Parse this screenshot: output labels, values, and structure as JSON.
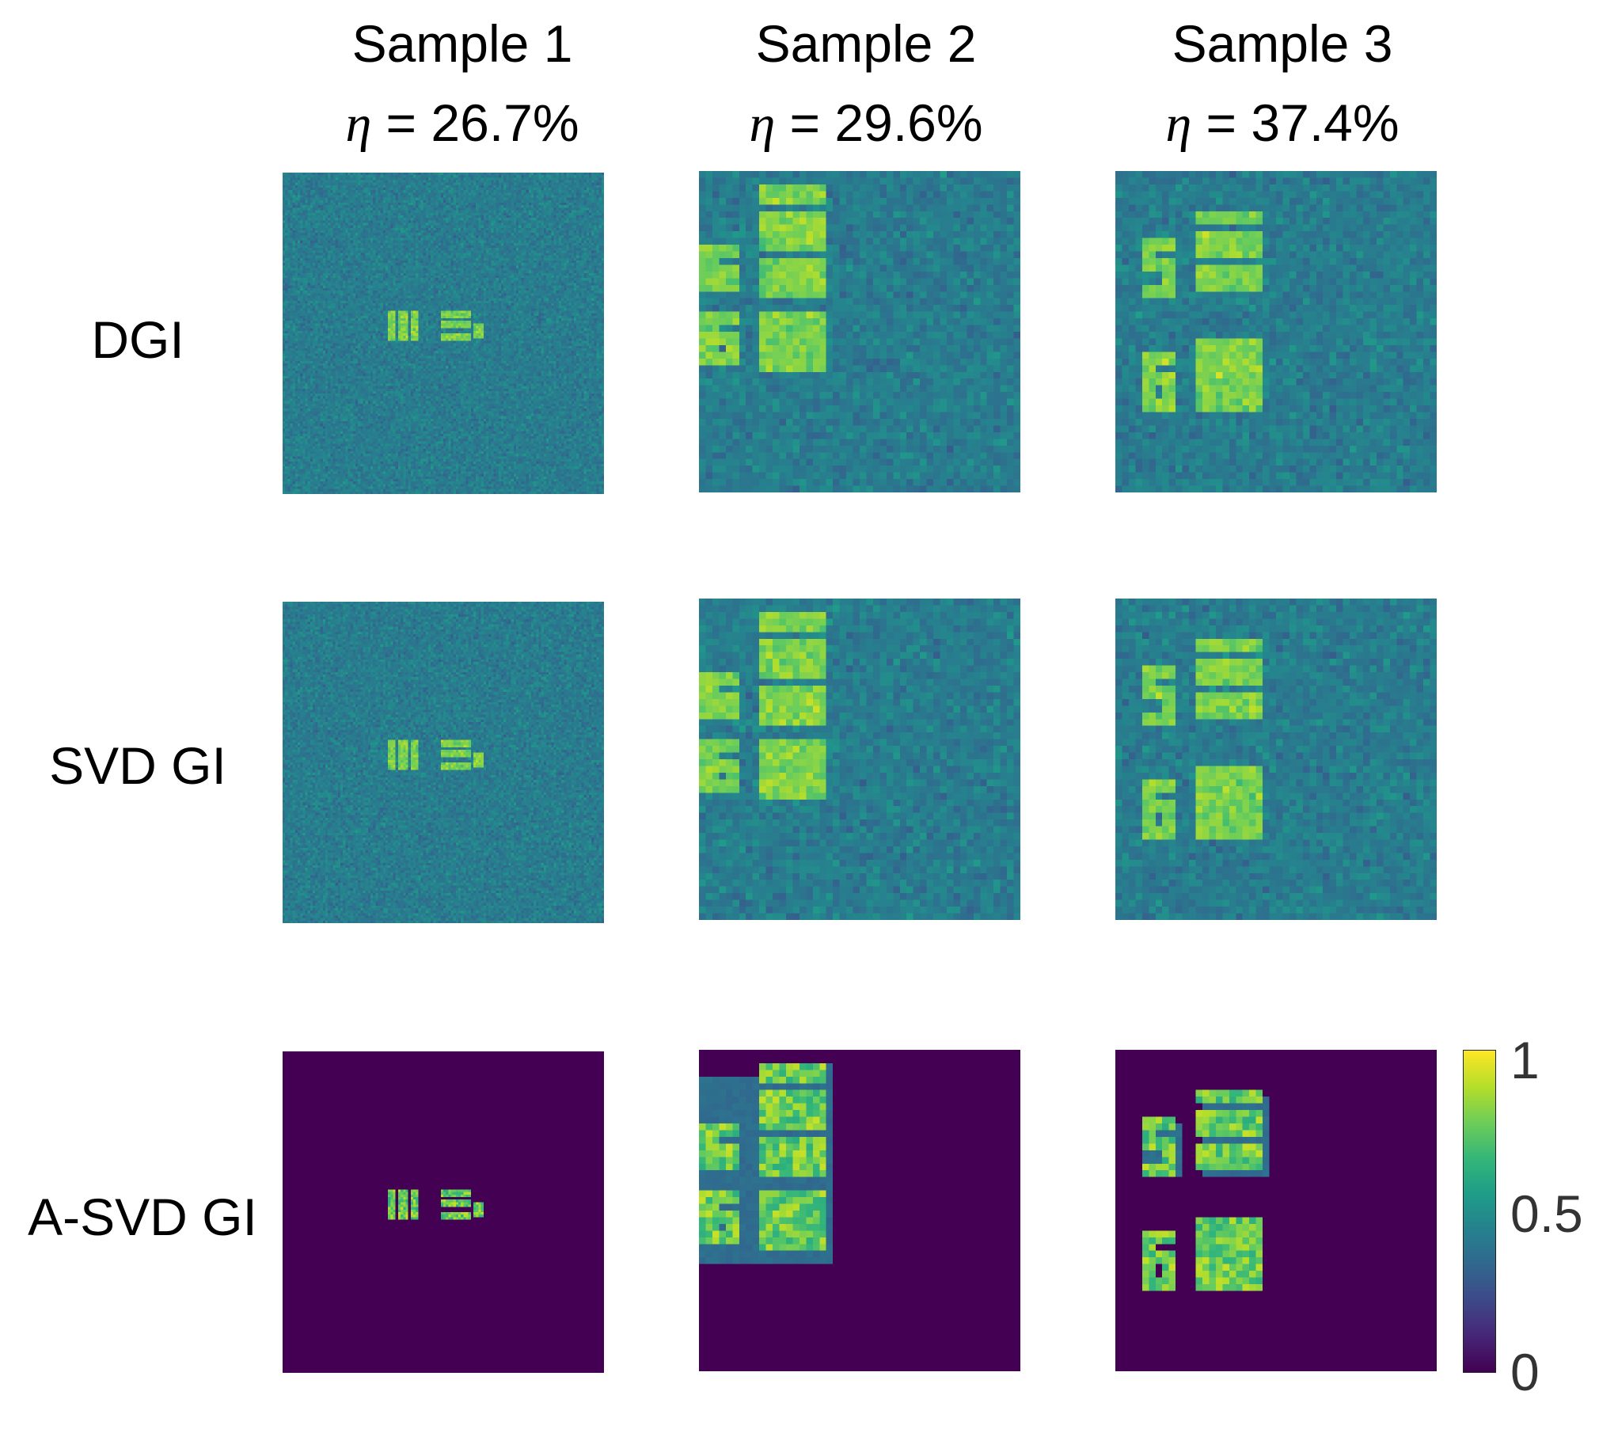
{
  "chart_data": {
    "type": "heatmap",
    "columns": [
      {
        "title": "Sample 1",
        "eta_symbol": "η",
        "eta_text": " = 26.7%",
        "eta_value_percent": 26.7,
        "pixels": 128
      },
      {
        "title": "Sample 2",
        "eta_symbol": "η",
        "eta_text": " = 29.6%",
        "eta_value_percent": 29.6,
        "pixels": 48
      },
      {
        "title": "Sample 3",
        "eta_symbol": "η",
        "eta_text": " = 37.4%",
        "eta_value_percent": 37.4,
        "pixels": 48
      }
    ],
    "rows": [
      {
        "label": "DGI",
        "method": "noisy"
      },
      {
        "label": "SVD GI",
        "method": "noisy"
      },
      {
        "label": "A-SVD GI",
        "method": "adaptive"
      }
    ],
    "colorbar": {
      "colormap": "viridis",
      "range": [
        0,
        1
      ],
      "ticks": [
        "1",
        "0.5",
        "0"
      ],
      "tick_values": [
        1,
        0.5,
        0
      ]
    }
  }
}
